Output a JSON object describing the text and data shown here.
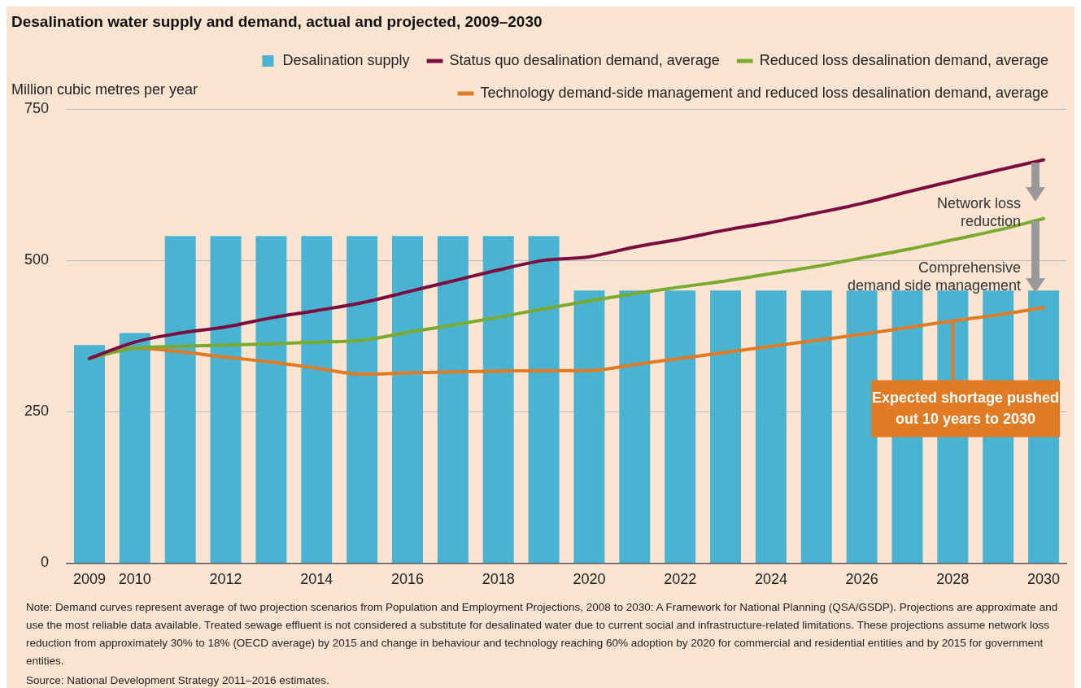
{
  "chart_data": {
    "type": "bar",
    "title": "Desalination water supply and demand, actual and projected, 2009–2030",
    "ylabel": "Million cubic metres per year",
    "categories": [
      "2009",
      "2010",
      null,
      "2012",
      null,
      "2014",
      null,
      "2016",
      null,
      "2018",
      null,
      "2020",
      null,
      "2022",
      null,
      "2024",
      null,
      "2026",
      null,
      "2028",
      null,
      "2030"
    ],
    "series": [
      {
        "name": "Desalination supply",
        "color": "#4bb3d2",
        "values": [
          360,
          380,
          540,
          540,
          540,
          540,
          540,
          540,
          540,
          540,
          540,
          450,
          450,
          450,
          450,
          450,
          450,
          450,
          450,
          450,
          450,
          450
        ]
      },
      {
        "name": "Status quo desalination demand, average",
        "type": "line",
        "color": "#7b0c3f",
        "values": [
          338,
          365,
          380,
          390,
          405,
          417,
          430,
          448,
          466,
          484,
          500,
          506,
          522,
          535,
          550,
          563,
          578,
          594,
          613,
          631,
          649,
          666
        ]
      },
      {
        "name": "Reduced loss desalination demand, average",
        "type": "line",
        "color": "#7aab2e",
        "values": [
          338,
          355,
          358,
          360,
          362,
          365,
          368,
          381,
          393,
          406,
          420,
          433,
          445,
          456,
          466,
          478,
          490,
          504,
          518,
          534,
          550,
          569
        ]
      },
      {
        "name": "Technology demand-side management and reduced loss desalination demand, average",
        "type": "line",
        "color": "#e07b23",
        "values": [
          338,
          355,
          349,
          340,
          332,
          322,
          312,
          314,
          316,
          317,
          318,
          318,
          328,
          338,
          348,
          358,
          368,
          378,
          389,
          400,
          410,
          422
        ]
      }
    ],
    "ylim": [
      0,
      750
    ],
    "yticks": [
      0,
      250,
      500,
      750
    ],
    "grid": "y",
    "legend": "top right",
    "marker": "none",
    "line_style": "solid",
    "annotations": [
      "Network loss reduction",
      "Comprehensive demand side management",
      {
        "text": "Expected shortage pushed out 10 years to 2030",
        "x": "2028",
        "y": 400
      },
      "Note: Demand curves represent average of two projection scenarios from Population and Employment Projections, 2008 to 2030: A Framework for National Planning (QSA/GSDP). Projections are approximate and use the most reliable data available. Treated sewage effluent is not considered a substitute for desalinated water due to current social and infrastructure-related limitations. These projections assume network loss reduction from approximately 30% to 18% (OECD average) by 2015 and change in behaviour and technology reaching 60% adoption by 2020 for commercial and residential entities and by 2015 for government entities.",
      "Source: National Development Strategy 2011–2016 estimates."
    ]
  }
}
